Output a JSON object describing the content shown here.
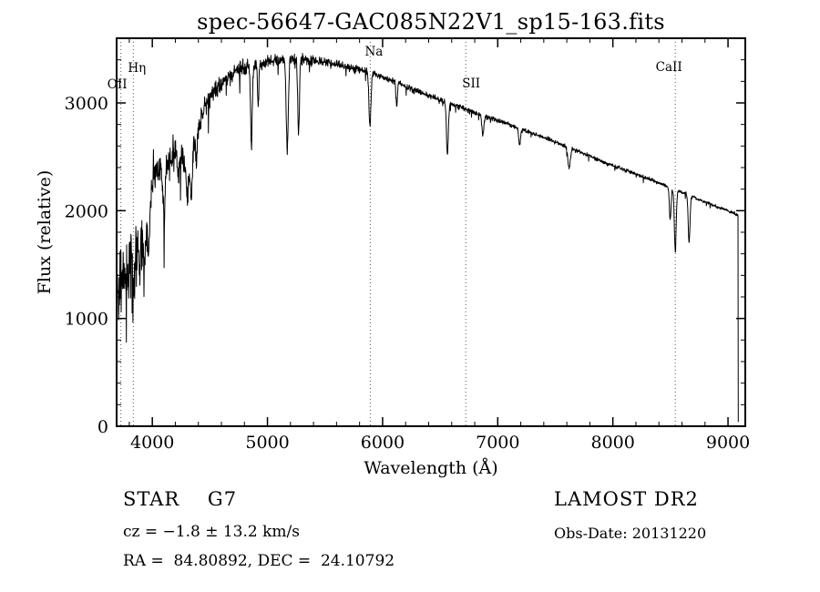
{
  "page": {
    "background": "#ffffff",
    "foreground": "#000000"
  },
  "title": "spec-56647-GAC085N22V1_sp15-163.fits",
  "annotations": {
    "class_line": "STAR    G7",
    "survey": "LAMOST DR2",
    "cz_line": "cz = −1.8 ± 13.2 km/s",
    "obs_date": "Obs-Date: 20131220",
    "radec_line": "RA =  84.80892, DEC =  24.10792"
  },
  "chart_data": {
    "type": "line",
    "title": "spec-56647-GAC085N22V1_sp15-163.fits",
    "xlabel": "Wavelength (Å)",
    "ylabel": "Flux (relative)",
    "xlim": [
      3690,
      9150
    ],
    "ylim": [
      0,
      3600
    ],
    "x_major_ticks": [
      4000,
      5000,
      6000,
      7000,
      8000,
      9000
    ],
    "x_minor_step": 200,
    "y_major_ticks": [
      0,
      1000,
      2000,
      3000
    ],
    "y_minor_step": 200,
    "grid": false,
    "legend": "none",
    "line_color": "#000000",
    "marker_line_style": "dotted",
    "spectral_markers": [
      {
        "label": "OII",
        "wavelength": 3727
      },
      {
        "label": "Hη",
        "wavelength": 3835
      },
      {
        "label": "Na",
        "wavelength": 5893
      },
      {
        "label": "SII",
        "wavelength": 6722
      },
      {
        "label": "CaII",
        "wavelength": 8542
      }
    ],
    "series": [
      {
        "name": "spectrum",
        "continuum_points": [
          [
            3690,
            1500
          ],
          [
            3705,
            1250
          ],
          [
            3720,
            1450
          ],
          [
            3735,
            1300
          ],
          [
            3750,
            1400
          ],
          [
            3770,
            1350
          ],
          [
            3800,
            1500
          ],
          [
            3850,
            1600
          ],
          [
            3900,
            1750
          ],
          [
            3950,
            1950
          ],
          [
            4000,
            2250
          ],
          [
            4050,
            2380
          ],
          [
            4100,
            2350
          ],
          [
            4150,
            2480
          ],
          [
            4200,
            2550
          ],
          [
            4250,
            2500
          ],
          [
            4300,
            2420
          ],
          [
            4350,
            2550
          ],
          [
            4400,
            2780
          ],
          [
            4450,
            2950
          ],
          [
            4500,
            3060
          ],
          [
            4550,
            3120
          ],
          [
            4600,
            3180
          ],
          [
            4650,
            3230
          ],
          [
            4700,
            3280
          ],
          [
            4750,
            3310
          ],
          [
            4800,
            3330
          ],
          [
            4850,
            3340
          ],
          [
            4900,
            3360
          ],
          [
            4950,
            3370
          ],
          [
            5000,
            3380
          ],
          [
            5100,
            3400
          ],
          [
            5200,
            3410
          ],
          [
            5300,
            3400
          ],
          [
            5400,
            3390
          ],
          [
            5500,
            3380
          ],
          [
            5600,
            3360
          ],
          [
            5700,
            3330
          ],
          [
            5800,
            3310
          ],
          [
            5900,
            3280
          ],
          [
            6000,
            3240
          ],
          [
            6100,
            3200
          ],
          [
            6200,
            3150
          ],
          [
            6300,
            3110
          ],
          [
            6400,
            3070
          ],
          [
            6500,
            3030
          ],
          [
            6600,
            2990
          ],
          [
            6700,
            2950
          ],
          [
            6800,
            2910
          ],
          [
            6900,
            2870
          ],
          [
            7000,
            2840
          ],
          [
            7100,
            2800
          ],
          [
            7200,
            2760
          ],
          [
            7300,
            2720
          ],
          [
            7400,
            2680
          ],
          [
            7500,
            2640
          ],
          [
            7600,
            2590
          ],
          [
            7700,
            2550
          ],
          [
            7800,
            2510
          ],
          [
            7900,
            2460
          ],
          [
            8000,
            2420
          ],
          [
            8100,
            2380
          ],
          [
            8200,
            2340
          ],
          [
            8300,
            2300
          ],
          [
            8400,
            2260
          ],
          [
            8500,
            2210
          ],
          [
            8600,
            2170
          ],
          [
            8700,
            2130
          ],
          [
            8800,
            2080
          ],
          [
            8900,
            2040
          ],
          [
            9000,
            2000
          ],
          [
            9085,
            1960
          ]
        ],
        "absorption_lines": [
          {
            "center": 3835,
            "depth": 350,
            "sigma": 7
          },
          {
            "center": 3889,
            "depth": 350,
            "sigma": 7
          },
          {
            "center": 3933,
            "depth": 420,
            "sigma": 9
          },
          {
            "center": 3968,
            "depth": 420,
            "sigma": 9
          },
          {
            "center": 4101,
            "depth": 420,
            "sigma": 9
          },
          {
            "center": 4227,
            "depth": 250,
            "sigma": 6
          },
          {
            "center": 4305,
            "depth": 300,
            "sigma": 12
          },
          {
            "center": 4340,
            "depth": 420,
            "sigma": 8
          },
          {
            "center": 4383,
            "depth": 280,
            "sigma": 6
          },
          {
            "center": 4861,
            "depth": 750,
            "sigma": 7
          },
          {
            "center": 4920,
            "depth": 400,
            "sigma": 6
          },
          {
            "center": 5172,
            "depth": 850,
            "sigma": 9
          },
          {
            "center": 5270,
            "depth": 700,
            "sigma": 7
          },
          {
            "center": 5890,
            "depth": 480,
            "sigma": 9
          },
          {
            "center": 6122,
            "depth": 200,
            "sigma": 6
          },
          {
            "center": 6563,
            "depth": 480,
            "sigma": 8
          },
          {
            "center": 6870,
            "depth": 180,
            "sigma": 8
          },
          {
            "center": 7190,
            "depth": 150,
            "sigma": 8
          },
          {
            "center": 7620,
            "depth": 200,
            "sigma": 10
          },
          {
            "center": 8498,
            "depth": 300,
            "sigma": 7
          },
          {
            "center": 8542,
            "depth": 560,
            "sigma": 8
          },
          {
            "center": 8662,
            "depth": 440,
            "sigma": 8
          }
        ],
        "noise_profile": [
          [
            3690,
            330
          ],
          [
            3900,
            290
          ],
          [
            4000,
            230
          ],
          [
            4200,
            160
          ],
          [
            4400,
            110
          ],
          [
            4600,
            85
          ],
          [
            4800,
            75
          ],
          [
            5000,
            60
          ],
          [
            5300,
            55
          ],
          [
            5600,
            45
          ],
          [
            6000,
            32
          ],
          [
            6500,
            26
          ],
          [
            7000,
            22
          ],
          [
            7500,
            20
          ],
          [
            8000,
            18
          ],
          [
            8500,
            18
          ],
          [
            9000,
            15
          ]
        ],
        "noise_seed": 42,
        "sample_step_angstrom": 2.5,
        "cutoff": {
          "start": 9085,
          "end": 9089,
          "end_flux": 40
        }
      }
    ]
  }
}
